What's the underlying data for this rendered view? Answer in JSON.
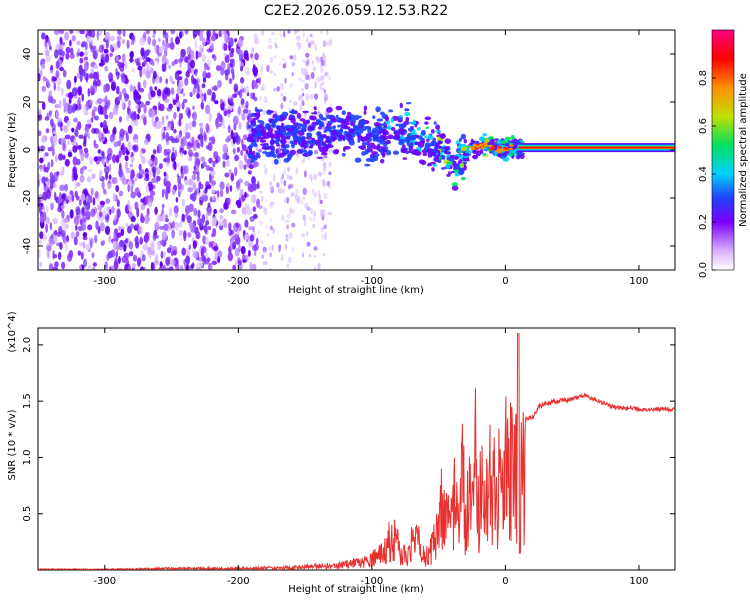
{
  "title": "C2E2.2026.059.12.53.R22",
  "chart_data": [
    {
      "type": "heatmap",
      "title": "C2E2.2026.059.12.53.R22",
      "xlabel": "Height of straight line (km)",
      "ylabel": "Frequency (Hz)",
      "xlim": [
        -350,
        127
      ],
      "ylim": [
        -50,
        50
      ],
      "xticks": [
        -300,
        -200,
        -100,
        0,
        100
      ],
      "yticks": [
        -40,
        -20,
        0,
        20,
        40
      ],
      "xtick_labels": [
        "-300",
        "-200",
        "-100",
        "0",
        "100"
      ],
      "ytick_labels": [
        "-40",
        "-20",
        "0",
        "20",
        "40"
      ],
      "colorbar": {
        "label": "Normalized spectral amplitude",
        "range": [
          0,
          1
        ],
        "ticks": [
          0.0,
          0.2,
          0.4,
          0.6,
          0.8
        ],
        "tick_labels": [
          "0.0",
          "0.2",
          "0.4",
          "0.6",
          "0.8"
        ],
        "colors": [
          "#ffffff",
          "#d8b0ff",
          "#7a00ff",
          "#2040ff",
          "#00d0ff",
          "#00e060",
          "#c0e000",
          "#ff9000",
          "#ff0000",
          "#ff0080"
        ]
      },
      "signal_track": [
        {
          "x": -190,
          "f": 5
        },
        {
          "x": -150,
          "f": 6
        },
        {
          "x": -120,
          "f": 7
        },
        {
          "x": -100,
          "f": 6
        },
        {
          "x": -80,
          "f": 7
        },
        {
          "x": -60,
          "f": 4
        },
        {
          "x": -45,
          "f": -2
        },
        {
          "x": -38,
          "f": -9
        },
        {
          "x": -33,
          "f": -3
        },
        {
          "x": -25,
          "f": 1
        },
        {
          "x": -15,
          "f": 2
        },
        {
          "x": -5,
          "f": 0
        },
        {
          "x": 5,
          "f": 1
        },
        {
          "x": 127,
          "f": 1
        }
      ]
    },
    {
      "type": "line",
      "xlabel": "Height of straight line (km)",
      "ylabel": "SNR (10 * v/v)",
      "multiplier": "(x10^4)",
      "xlim": [
        -350,
        127
      ],
      "ylim": [
        0,
        2.15
      ],
      "xticks": [
        -300,
        -200,
        -100,
        0,
        100
      ],
      "yticks": [
        0.5,
        1.0,
        1.5,
        2.0
      ],
      "xtick_labels": [
        "-300",
        "-200",
        "-100",
        "0",
        "100"
      ],
      "ytick_labels": [
        "0.5",
        "1.0",
        "1.5",
        "2.0"
      ],
      "series": [
        {
          "name": "SNR",
          "color": "#e8302e",
          "x": [
            -350,
            -300,
            -250,
            -200,
            -170,
            -150,
            -130,
            -110,
            -100,
            -95,
            -90,
            -85,
            -80,
            -75,
            -70,
            -65,
            -60,
            -55,
            -50,
            -48,
            -45,
            -42,
            -40,
            -38,
            -35,
            -32,
            -30,
            -27,
            -25,
            -22,
            -20,
            -18,
            -15,
            -12,
            -10,
            -8,
            -6,
            -4,
            -2,
            0,
            2,
            5,
            8,
            10,
            12,
            15,
            20,
            25,
            30,
            40,
            50,
            60,
            70,
            80,
            100,
            127
          ],
          "y": [
            0.01,
            0.01,
            0.02,
            0.02,
            0.03,
            0.04,
            0.06,
            0.1,
            0.15,
            0.2,
            0.25,
            0.5,
            0.3,
            0.2,
            0.35,
            0.4,
            0.15,
            0.3,
            0.5,
            0.8,
            0.6,
            0.9,
            0.5,
            0.95,
            0.6,
            1.2,
            0.7,
            1.0,
            0.8,
            1.5,
            0.9,
            1.1,
            0.7,
            1.4,
            0.9,
            1.3,
            0.8,
            1.5,
            1.0,
            1.4,
            1.2,
            1.5,
            1.3,
            2.1,
            1.2,
            1.35,
            1.35,
            1.45,
            1.48,
            1.5,
            1.52,
            1.55,
            1.5,
            1.45,
            1.43,
            1.43
          ]
        }
      ]
    }
  ]
}
